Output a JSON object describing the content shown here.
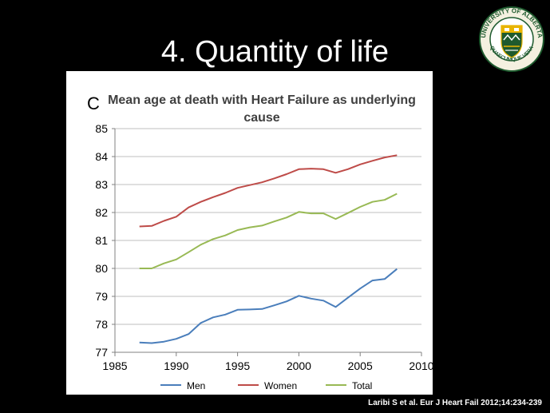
{
  "slide": {
    "title": "4. Quantity of life",
    "citation": "Laribi S et al. Eur J Heart Fail 2012;14:234-239"
  },
  "logo": {
    "text_top": "UNIVERSITY OF ALBERTA",
    "text_bottom": "QUAECUMQUE VERA",
    "colors": {
      "green": "#1e5a2e",
      "gold": "#e8b400"
    }
  },
  "chart_data": {
    "type": "line",
    "panel_label": "C",
    "title": "Mean age at death with Heart Failure as underlying cause",
    "title_lines": [
      "Mean age at death with Heart Failure as underlying",
      "cause"
    ],
    "xlim": [
      1985,
      2010
    ],
    "ylim": [
      77,
      85
    ],
    "x_ticks": [
      1985,
      1990,
      1995,
      2000,
      2005,
      2010
    ],
    "y_ticks": [
      77,
      78,
      79,
      80,
      81,
      82,
      83,
      84,
      85
    ],
    "grid": "horizontal",
    "legend_position": "bottom",
    "series": [
      {
        "name": "Men",
        "color": "#4a7ebb",
        "points": [
          [
            1987,
            77.35
          ],
          [
            1988,
            77.33
          ],
          [
            1989,
            77.38
          ],
          [
            1990,
            77.48
          ],
          [
            1991,
            77.65
          ],
          [
            1992,
            78.05
          ],
          [
            1993,
            78.25
          ],
          [
            1994,
            78.35
          ],
          [
            1995,
            78.52
          ],
          [
            1996,
            78.53
          ],
          [
            1997,
            78.55
          ],
          [
            1998,
            78.68
          ],
          [
            1999,
            78.82
          ],
          [
            2000,
            79.02
          ],
          [
            2001,
            78.92
          ],
          [
            2002,
            78.85
          ],
          [
            2003,
            78.62
          ],
          [
            2004,
            78.95
          ],
          [
            2005,
            79.28
          ],
          [
            2006,
            79.57
          ],
          [
            2007,
            79.62
          ],
          [
            2008,
            79.98
          ]
        ]
      },
      {
        "name": "Women",
        "color": "#be4b48",
        "points": [
          [
            1987,
            81.5
          ],
          [
            1988,
            81.52
          ],
          [
            1989,
            81.7
          ],
          [
            1990,
            81.85
          ],
          [
            1991,
            82.18
          ],
          [
            1992,
            82.38
          ],
          [
            1993,
            82.55
          ],
          [
            1994,
            82.7
          ],
          [
            1995,
            82.88
          ],
          [
            1996,
            82.98
          ],
          [
            1997,
            83.08
          ],
          [
            1998,
            83.22
          ],
          [
            1999,
            83.37
          ],
          [
            2000,
            83.55
          ],
          [
            2001,
            83.57
          ],
          [
            2002,
            83.55
          ],
          [
            2003,
            83.42
          ],
          [
            2004,
            83.55
          ],
          [
            2005,
            83.72
          ],
          [
            2006,
            83.85
          ],
          [
            2007,
            83.97
          ],
          [
            2008,
            84.05
          ]
        ]
      },
      {
        "name": "Total",
        "color": "#98b954",
        "points": [
          [
            1987,
            80.0
          ],
          [
            1988,
            80.0
          ],
          [
            1989,
            80.18
          ],
          [
            1990,
            80.32
          ],
          [
            1991,
            80.58
          ],
          [
            1992,
            80.85
          ],
          [
            1993,
            81.05
          ],
          [
            1994,
            81.18
          ],
          [
            1995,
            81.37
          ],
          [
            1996,
            81.47
          ],
          [
            1997,
            81.53
          ],
          [
            1998,
            81.68
          ],
          [
            1999,
            81.82
          ],
          [
            2000,
            82.02
          ],
          [
            2001,
            81.97
          ],
          [
            2002,
            81.97
          ],
          [
            2003,
            81.77
          ],
          [
            2004,
            81.98
          ],
          [
            2005,
            82.2
          ],
          [
            2006,
            82.38
          ],
          [
            2007,
            82.45
          ],
          [
            2008,
            82.67
          ]
        ]
      }
    ]
  }
}
